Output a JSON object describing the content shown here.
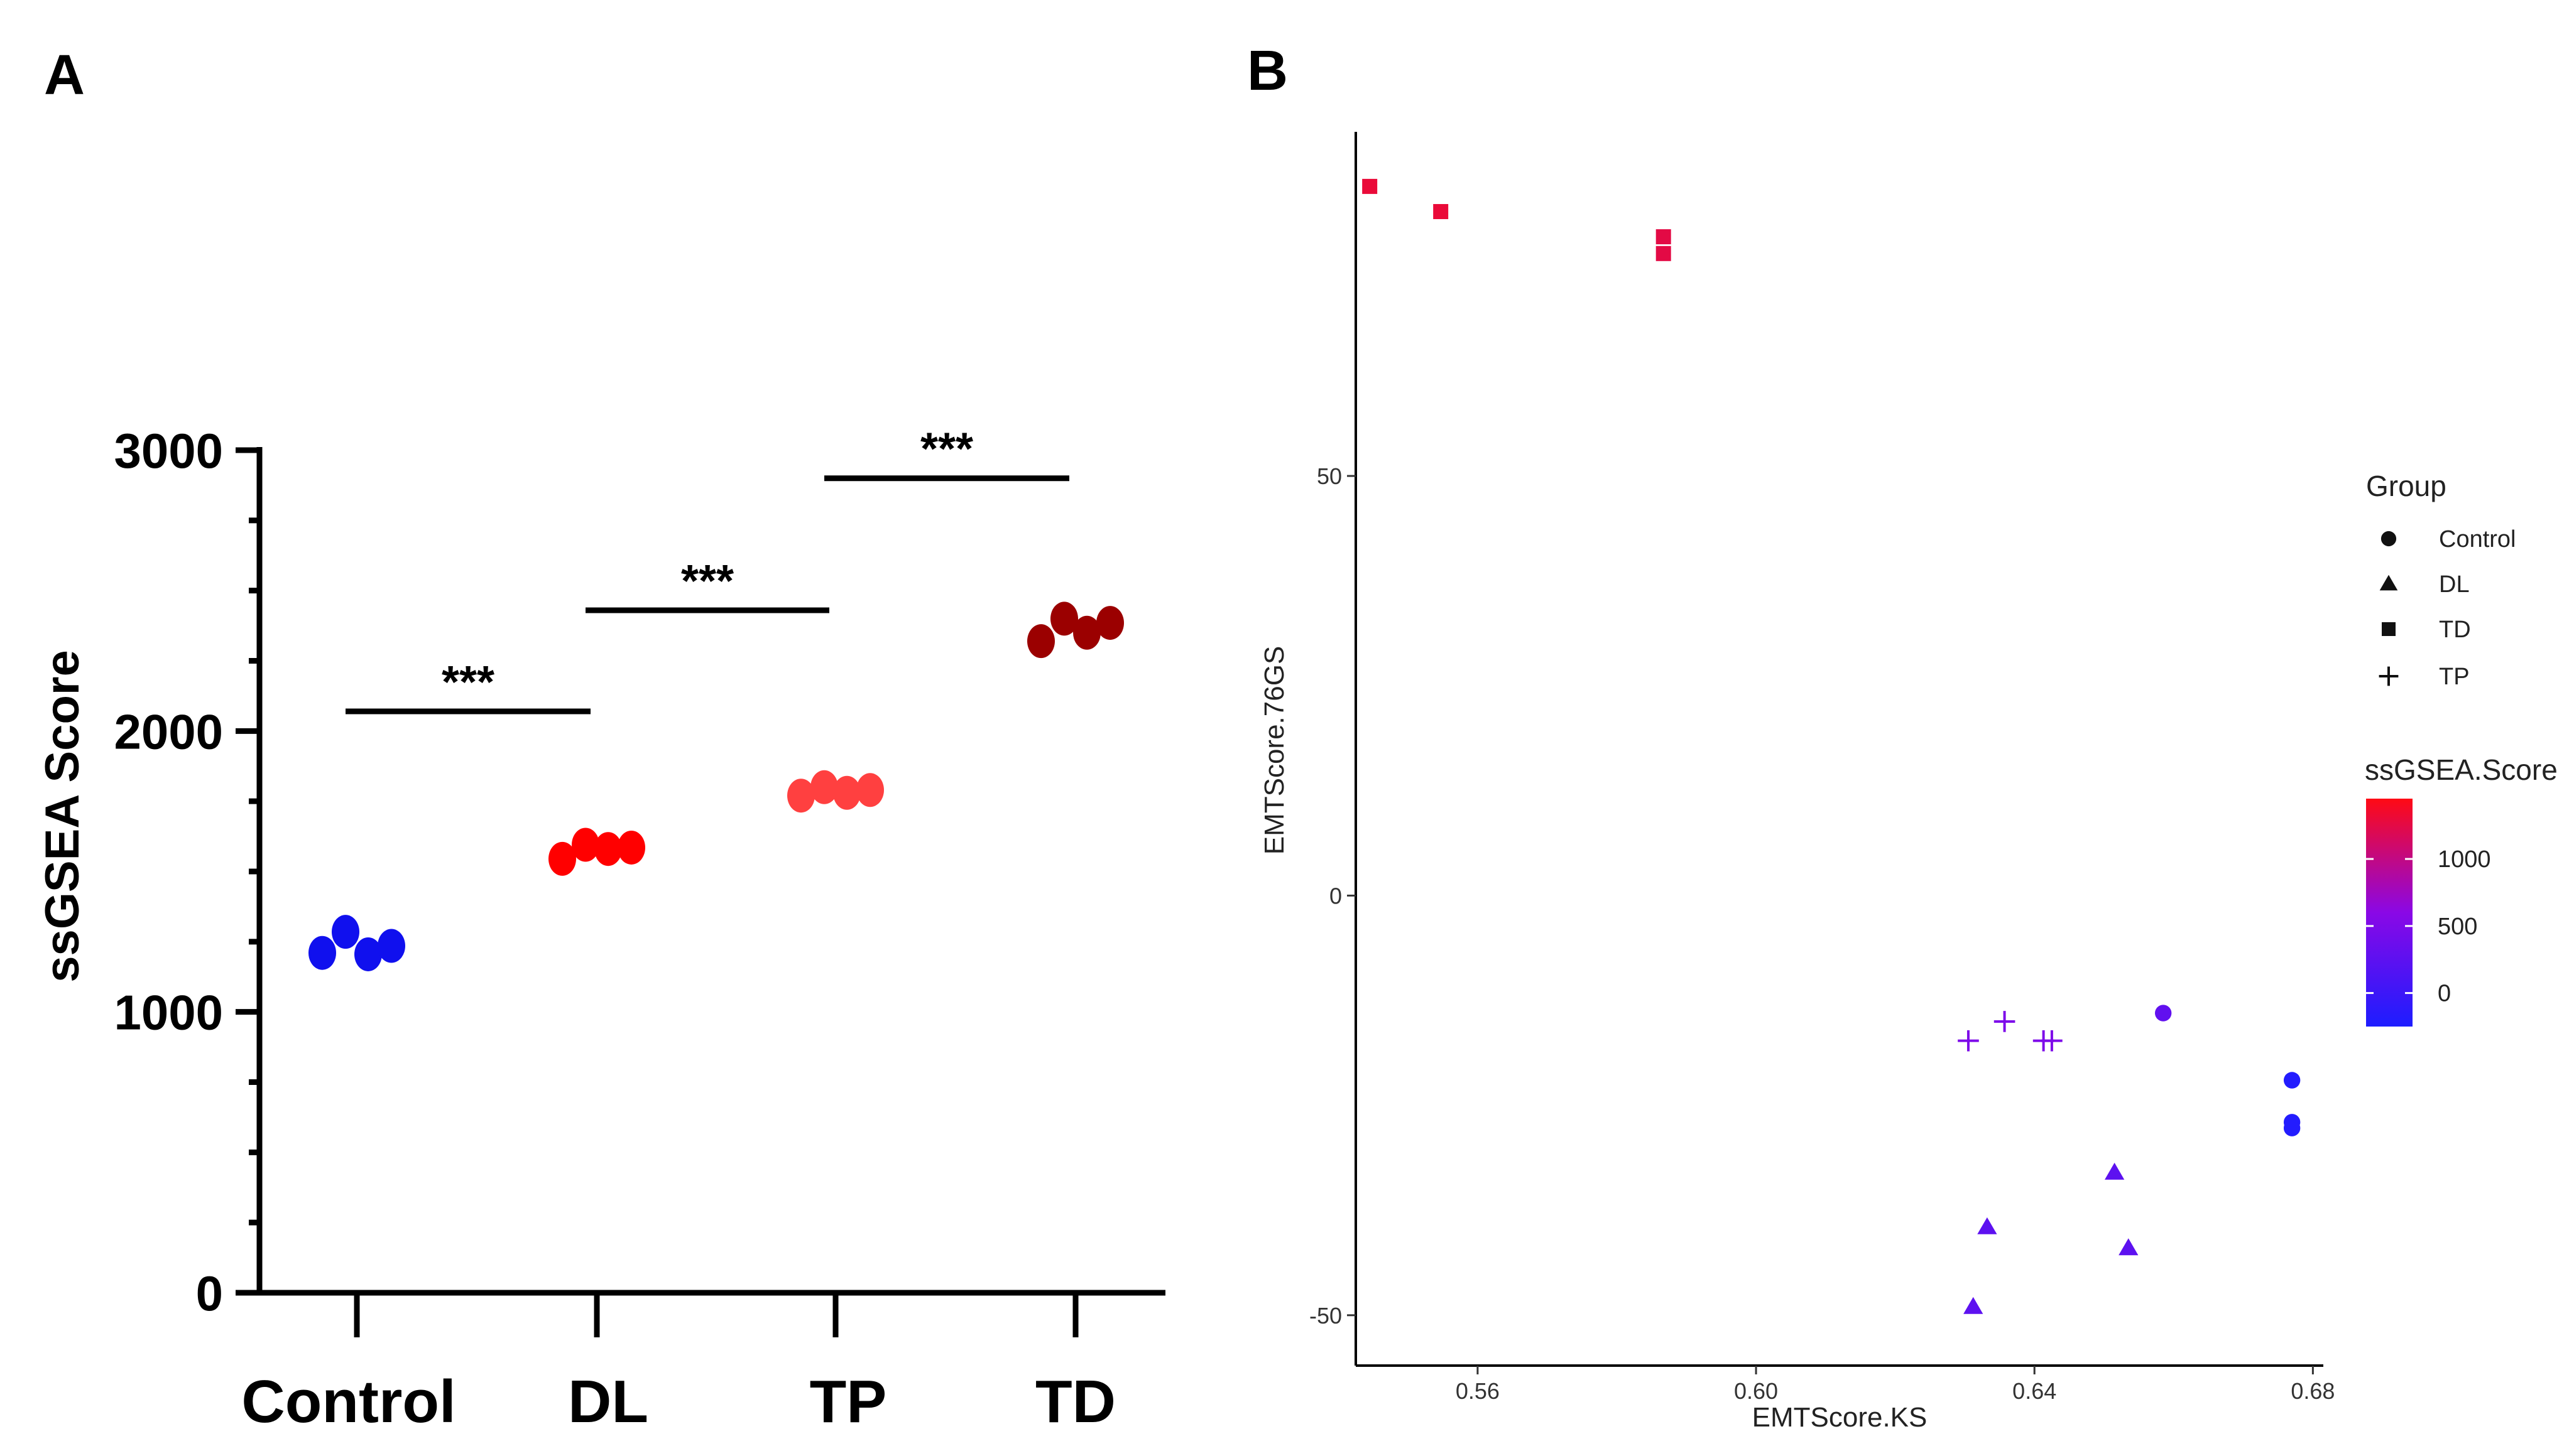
{
  "panels": {
    "a": "A",
    "b": "B"
  },
  "chart_data": [
    {
      "type": "scatter",
      "panel": "A",
      "ylabel": "ssGSEA Score",
      "xlabel": "",
      "ylim": [
        0,
        3000
      ],
      "yticks": [
        "0",
        "1000",
        "2000",
        "3000"
      ],
      "categories": [
        "Control",
        "DL",
        "TP",
        "TD"
      ],
      "colors": [
        "#1010ee",
        "#ff0000",
        "#ff4040",
        "#9b0000"
      ],
      "series": [
        {
          "name": "Control",
          "values": [
            1210,
            1285,
            1205,
            1235
          ]
        },
        {
          "name": "DL",
          "values": [
            1545,
            1595,
            1580,
            1585
          ]
        },
        {
          "name": "TP",
          "values": [
            1770,
            1800,
            1780,
            1790
          ]
        },
        {
          "name": "TD",
          "values": [
            2320,
            2400,
            2350,
            2385
          ]
        }
      ],
      "significance": [
        {
          "from": "Control",
          "to": "DL",
          "level": 2070,
          "label": "***"
        },
        {
          "from": "DL",
          "to": "TP",
          "level": 2430,
          "label": "***"
        },
        {
          "from": "TP",
          "to": "TD",
          "level": 2900,
          "label": "***"
        }
      ]
    },
    {
      "type": "scatter",
      "panel": "B",
      "xlabel": "EMTScore.KS",
      "ylabel": "EMTScore.76GS",
      "xlim": [
        0.5425,
        0.6815
      ],
      "ylim": [
        -56,
        91
      ],
      "xticks": [
        "0.56",
        "0.60",
        "0.64",
        "0.68"
      ],
      "yticks": [
        "-50",
        "0",
        "50"
      ],
      "legend": {
        "shape_title": "Group",
        "groups": [
          "Control",
          "DL",
          "TD",
          "TP"
        ],
        "color_title": "ssGSEA.Score",
        "color_ticks": [
          "1000",
          "500",
          "0"
        ],
        "color_range": [
          -250,
          1450
        ],
        "color_low": "#1d1dff",
        "color_mid": "#8a08e6",
        "color_high": "#ff0a14",
        "placement": "right"
      },
      "points": [
        {
          "group": "TD",
          "x": 0.5445,
          "y": 84.5,
          "score": 1300
        },
        {
          "group": "TD",
          "x": 0.5547,
          "y": 81.5,
          "score": 1300
        },
        {
          "group": "TD",
          "x": 0.5867,
          "y": 78.5,
          "score": 1250
        },
        {
          "group": "TD",
          "x": 0.5867,
          "y": 76.5,
          "score": 1250
        },
        {
          "group": "TP",
          "x": 0.6305,
          "y": -17.3,
          "score": 500
        },
        {
          "group": "TP",
          "x": 0.6357,
          "y": -15.0,
          "score": 500
        },
        {
          "group": "TP",
          "x": 0.6413,
          "y": -17.3,
          "score": 500
        },
        {
          "group": "TP",
          "x": 0.6425,
          "y": -17.3,
          "score": 500
        },
        {
          "group": "Control",
          "x": 0.6585,
          "y": -14.0,
          "score": 280
        },
        {
          "group": "Control",
          "x": 0.677,
          "y": -22.0,
          "score": -200
        },
        {
          "group": "Control",
          "x": 0.677,
          "y": -27.0,
          "score": -200
        },
        {
          "group": "Control",
          "x": 0.677,
          "y": -27.7,
          "score": -200
        },
        {
          "group": "DL",
          "x": 0.6515,
          "y": -33.0,
          "score": 250
        },
        {
          "group": "DL",
          "x": 0.6332,
          "y": -39.5,
          "score": 250
        },
        {
          "group": "DL",
          "x": 0.6535,
          "y": -42.0,
          "score": 250
        },
        {
          "group": "DL",
          "x": 0.6312,
          "y": -49.0,
          "score": 250
        }
      ]
    }
  ]
}
